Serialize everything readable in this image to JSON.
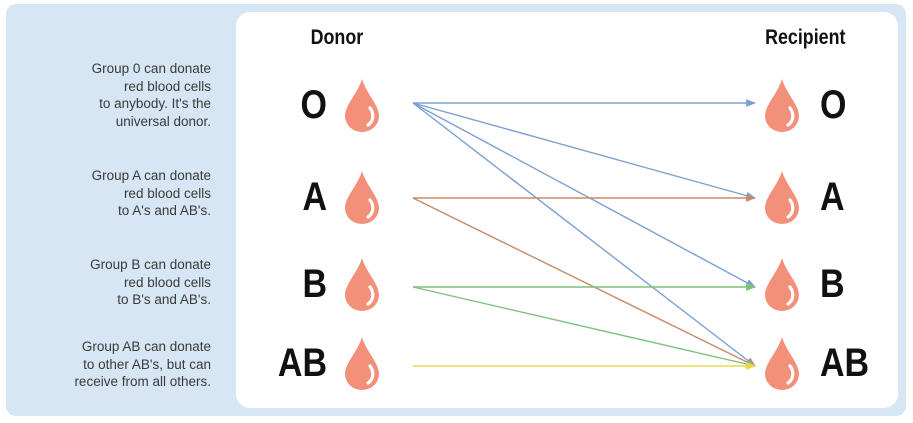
{
  "headings": {
    "donor": "Donor",
    "recipient": "Recipient"
  },
  "groups": [
    "O",
    "A",
    "B",
    "AB"
  ],
  "notes": [
    [
      "Group 0 can donate",
      "red blood cells",
      "to anybody. It's the",
      "universal donor."
    ],
    [
      "Group A can donate",
      "red blood cells",
      "to A's and AB's."
    ],
    [
      "Group B can donate",
      "red blood cells",
      "to B's and AB's."
    ],
    [
      "Group AB can donate",
      "to other AB's, but can",
      "receive from all others."
    ]
  ],
  "compatibility": [
    {
      "from": "O",
      "to": [
        "O",
        "A",
        "B",
        "AB"
      ],
      "color": "#7b9fd3"
    },
    {
      "from": "A",
      "to": [
        "A",
        "AB"
      ],
      "color": "#c98a6a"
    },
    {
      "from": "B",
      "to": [
        "B",
        "AB"
      ],
      "color": "#7cc27a"
    },
    {
      "from": "AB",
      "to": [
        "AB"
      ],
      "color": "#e8d84a"
    }
  ],
  "colors": {
    "drop": "#f2907a",
    "drop_highlight": "#ffffff",
    "background": "#d6e6f4"
  },
  "icons": {
    "blood_drop": "blood-drop-icon"
  }
}
